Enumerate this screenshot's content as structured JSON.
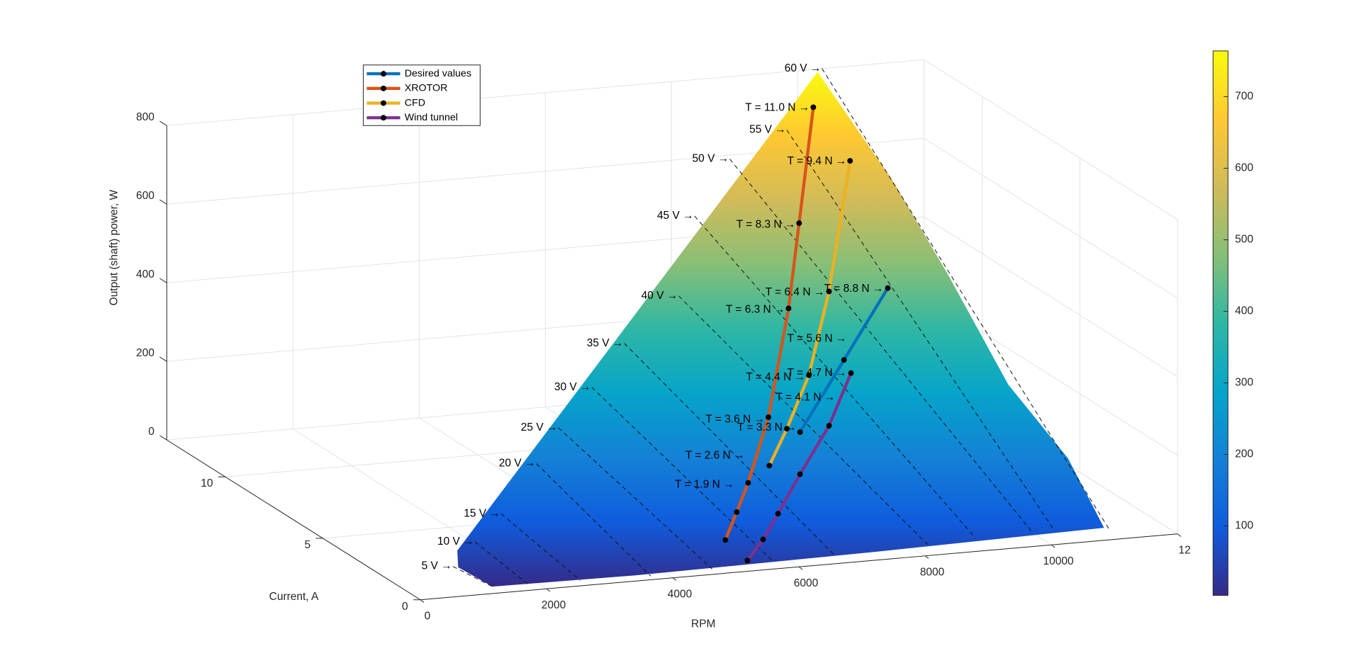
{
  "chart_data": {
    "type": "surface3d",
    "xlabel": "RPM",
    "ylabel": "Current, A",
    "zlabel": "Output (shaft) power, W",
    "xlim": [
      0,
      12000
    ],
    "xticks": [
      0,
      2000,
      4000,
      6000,
      8000,
      10000,
      {
        "value": 12000,
        "label": "12"
      }
    ],
    "ylim": [
      0,
      13
    ],
    "yticks": [
      0,
      5,
      10
    ],
    "zlim": [
      0,
      800
    ],
    "zticks": [
      0,
      200,
      400,
      600,
      800
    ],
    "clim": [
      3,
      764
    ],
    "cticks": [
      100,
      200,
      300,
      400,
      500,
      600,
      700
    ],
    "grid": true,
    "legend_position": "upper left",
    "series": [
      {
        "name": "Desired values",
        "color": "#0072BD",
        "x": [
          7350,
          8550,
          9690
        ],
        "y": [
          4.31,
          5.94,
          7.38
        ],
        "z": [
          189,
          305,
          427
        ]
      },
      {
        "name": "XROTOR",
        "color": "#D95319",
        "x": [
          5230,
          5700,
          6150,
          7050,
          8250,
          9020,
          10000
        ],
        "y": [
          1.28,
          2.22,
          3.09,
          4.96,
          7.81,
          9.76,
          12.2
        ],
        "z": [
          39,
          74,
          115,
          211,
          382,
          527,
          732
        ]
      },
      {
        "name": "CFD",
        "color": "#EDB120",
        "x": [
          6610,
          7200,
          7960,
          8900,
          10100
        ],
        "y": [
          3.49,
          4.5,
          5.83,
          7.84,
          10.64
        ],
        "z": [
          140,
          194,
          278,
          415,
          643
        ]
      },
      {
        "name": "Wind tunnel",
        "color": "#7E2F8E",
        "x": [
          5300,
          5760,
          6250,
          6960,
          7800,
          8550
        ],
        "y": [
          0.38,
          1.06,
          1.88,
          3.05,
          4.28,
          5.58
        ],
        "z": [
          14,
          40,
          73,
          127,
          200,
          283
        ]
      }
    ],
    "voltage_labels": [
      "5 V →",
      "10 V →",
      "15 V →",
      "20 V →",
      "25 V →",
      "30 V →",
      "35 V →",
      "40 V →",
      "45 V →",
      "50 V →",
      "55 V →",
      "60 V →"
    ],
    "thrust_labels": [
      "T = 11.0 N →",
      "T = 9.4 N →",
      "T = 8.3 N →",
      "T = 6.4 N →",
      "T = 8.8 N →",
      "T = 6.3 N →",
      "T = 5.6 N →",
      "T = 4.4 N →",
      "T = 4.7 N →",
      "T = 4.1 N →",
      "T = 3.6 N →",
      "T = 3.3 N →",
      "T = 2.6 N →",
      "T = 1.9 N →"
    ]
  }
}
